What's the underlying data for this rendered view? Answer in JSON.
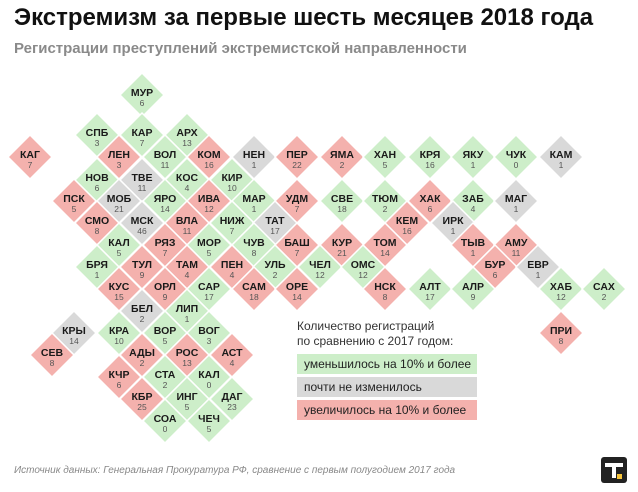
{
  "title": "Экстремизм за первые шесть месяцев 2018 года",
  "subtitle": "Регистрации преступлений экстремистской направленности",
  "legend": {
    "title_line1": "Количество регистраций",
    "title_line2": "по сравнению с 2017 годом:",
    "items": [
      {
        "key": "decrease",
        "label": "уменьшилось на 10% и более",
        "color": "#cdeec9"
      },
      {
        "key": "same",
        "label": "почти не изменилось",
        "color": "#d9d9d9"
      },
      {
        "key": "increase",
        "label": "увеличилось на 10% и более",
        "color": "#f4b1ad"
      }
    ]
  },
  "source": "Источник данных: Генеральная Прокуратура РФ, сравнение с первым полугодием 2017 года",
  "chart_data": {
    "type": "tile map",
    "value_label": "Количество регистраций",
    "regions": [
      {
        "code": "МУР",
        "value": 6,
        "change": "decrease"
      },
      {
        "code": "СПБ",
        "value": 3,
        "change": "decrease"
      },
      {
        "code": "КАР",
        "value": 7,
        "change": "decrease"
      },
      {
        "code": "АРХ",
        "value": 13,
        "change": "decrease"
      },
      {
        "code": "КАГ",
        "value": 7,
        "change": "increase"
      },
      {
        "code": "ЛЕН",
        "value": 3,
        "change": "increase"
      },
      {
        "code": "ВОЛ",
        "value": 11,
        "change": "decrease"
      },
      {
        "code": "КОМ",
        "value": 16,
        "change": "increase"
      },
      {
        "code": "НЕН",
        "value": 1,
        "change": "same"
      },
      {
        "code": "ПЕР",
        "value": 22,
        "change": "increase"
      },
      {
        "code": "ЯМА",
        "value": 2,
        "change": "increase"
      },
      {
        "code": "ХАН",
        "value": 5,
        "change": "decrease"
      },
      {
        "code": "КРЯ",
        "value": 16,
        "change": "decrease"
      },
      {
        "code": "ЯКУ",
        "value": 1,
        "change": "decrease"
      },
      {
        "code": "ЧУК",
        "value": 0,
        "change": "decrease"
      },
      {
        "code": "КАМ",
        "value": 1,
        "change": "same"
      },
      {
        "code": "НОВ",
        "value": 6,
        "change": "decrease"
      },
      {
        "code": "ТВЕ",
        "value": 11,
        "change": "same"
      },
      {
        "code": "КОС",
        "value": 4,
        "change": "decrease"
      },
      {
        "code": "КИР",
        "value": 10,
        "change": "decrease"
      },
      {
        "code": "ПСК",
        "value": 5,
        "change": "increase"
      },
      {
        "code": "МОБ",
        "value": 21,
        "change": "same"
      },
      {
        "code": "ЯРО",
        "value": 14,
        "change": "decrease"
      },
      {
        "code": "ИВА",
        "value": 12,
        "change": "increase"
      },
      {
        "code": "МАР",
        "value": 1,
        "change": "decrease"
      },
      {
        "code": "УДМ",
        "value": 7,
        "change": "increase"
      },
      {
        "code": "СВЕ",
        "value": 18,
        "change": "decrease"
      },
      {
        "code": "ТЮМ",
        "value": 2,
        "change": "decrease"
      },
      {
        "code": "ХАК",
        "value": 6,
        "change": "increase"
      },
      {
        "code": "ЗАБ",
        "value": 4,
        "change": "decrease"
      },
      {
        "code": "МАГ",
        "value": 1,
        "change": "same"
      },
      {
        "code": "СМО",
        "value": 8,
        "change": "increase"
      },
      {
        "code": "МСК",
        "value": 46,
        "change": "same"
      },
      {
        "code": "ВЛА",
        "value": 11,
        "change": "increase"
      },
      {
        "code": "НИЖ",
        "value": 7,
        "change": "decrease"
      },
      {
        "code": "ТАТ",
        "value": 17,
        "change": "same"
      },
      {
        "code": "КЕМ",
        "value": 16,
        "change": "increase"
      },
      {
        "code": "ИРК",
        "value": 1,
        "change": "same"
      },
      {
        "code": "КАЛ",
        "value": 5,
        "change": "decrease"
      },
      {
        "code": "РЯЗ",
        "value": 7,
        "change": "increase"
      },
      {
        "code": "МОР",
        "value": 5,
        "change": "decrease"
      },
      {
        "code": "ЧУВ",
        "value": 8,
        "change": "decrease"
      },
      {
        "code": "БАШ",
        "value": 7,
        "change": "increase"
      },
      {
        "code": "КУР",
        "value": 21,
        "change": "increase"
      },
      {
        "code": "ТОМ",
        "value": 14,
        "change": "increase"
      },
      {
        "code": "ТЫВ",
        "value": 1,
        "change": "increase"
      },
      {
        "code": "АМУ",
        "value": 11,
        "change": "increase"
      },
      {
        "code": "БРЯ",
        "value": 1,
        "change": "decrease"
      },
      {
        "code": "ТУЛ",
        "value": 9,
        "change": "increase"
      },
      {
        "code": "ТАМ",
        "value": 4,
        "change": "increase"
      },
      {
        "code": "ПЕН",
        "value": 4,
        "change": "increase"
      },
      {
        "code": "УЛЬ",
        "value": 2,
        "change": "decrease"
      },
      {
        "code": "ЧЕЛ",
        "value": 12,
        "change": "decrease"
      },
      {
        "code": "ОМС",
        "value": 12,
        "change": "decrease"
      },
      {
        "code": "БУР",
        "value": 6,
        "change": "increase"
      },
      {
        "code": "ЕВР",
        "value": 1,
        "change": "same"
      },
      {
        "code": "КУС",
        "value": 15,
        "change": "increase"
      },
      {
        "code": "ОРЛ",
        "value": 9,
        "change": "increase"
      },
      {
        "code": "САР",
        "value": 17,
        "change": "decrease"
      },
      {
        "code": "САМ",
        "value": 18,
        "change": "increase"
      },
      {
        "code": "ОРЕ",
        "value": 14,
        "change": "increase"
      },
      {
        "code": "НСК",
        "value": 8,
        "change": "increase"
      },
      {
        "code": "АЛТ",
        "value": 17,
        "change": "decrease"
      },
      {
        "code": "АЛР",
        "value": 9,
        "change": "decrease"
      },
      {
        "code": "ХАБ",
        "value": 12,
        "change": "decrease"
      },
      {
        "code": "САХ",
        "value": 2,
        "change": "decrease"
      },
      {
        "code": "БЕЛ",
        "value": 2,
        "change": "same"
      },
      {
        "code": "ЛИП",
        "value": 1,
        "change": "decrease"
      },
      {
        "code": "КРЫ",
        "value": 14,
        "change": "same"
      },
      {
        "code": "КРА",
        "value": 10,
        "change": "decrease"
      },
      {
        "code": "ВОР",
        "value": 5,
        "change": "decrease"
      },
      {
        "code": "ВОГ",
        "value": 3,
        "change": "decrease"
      },
      {
        "code": "ПРИ",
        "value": 8,
        "change": "increase"
      },
      {
        "code": "СЕВ",
        "value": 8,
        "change": "increase"
      },
      {
        "code": "АДЫ",
        "value": 2,
        "change": "increase"
      },
      {
        "code": "РОС",
        "value": 13,
        "change": "increase"
      },
      {
        "code": "АСТ",
        "value": 4,
        "change": "increase"
      },
      {
        "code": "КЧР",
        "value": 6,
        "change": "increase"
      },
      {
        "code": "СТА",
        "value": 2,
        "change": "decrease"
      },
      {
        "code": "КАЛ",
        "value": 0,
        "change": "decrease"
      },
      {
        "code": "КБР",
        "value": 25,
        "change": "increase"
      },
      {
        "code": "ИНГ",
        "value": 5,
        "change": "decrease"
      },
      {
        "code": "ДАГ",
        "value": 23,
        "change": "decrease"
      },
      {
        "code": "СОА",
        "value": 0,
        "change": "decrease"
      },
      {
        "code": "ЧЕЧ",
        "value": 5,
        "change": "decrease"
      }
    ]
  }
}
